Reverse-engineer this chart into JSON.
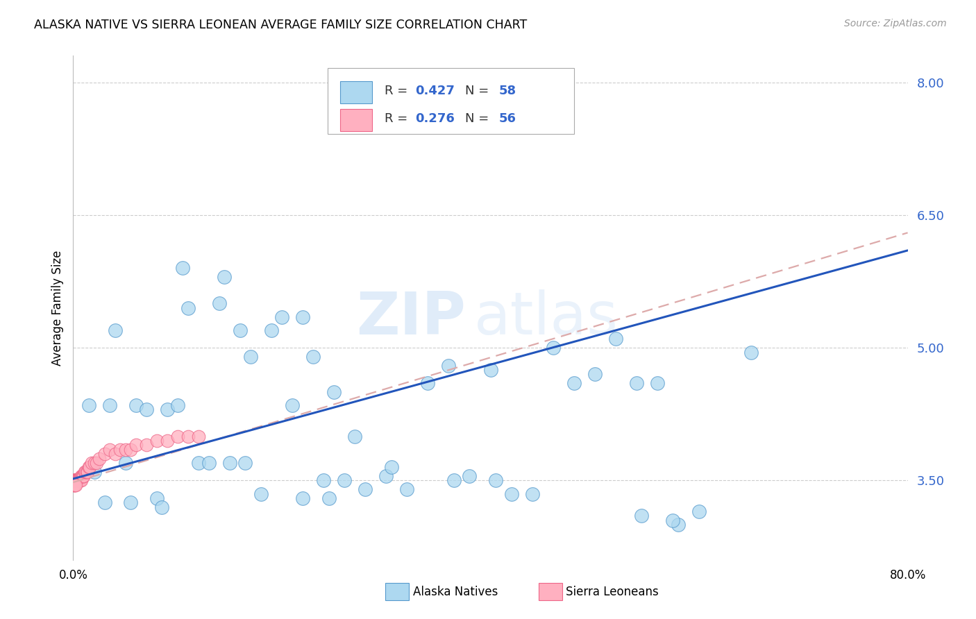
{
  "title": "ALASKA NATIVE VS SIERRA LEONEAN AVERAGE FAMILY SIZE CORRELATION CHART",
  "source": "Source: ZipAtlas.com",
  "ylabel": "Average Family Size",
  "yticks": [
    3.5,
    5.0,
    6.5,
    8.0
  ],
  "xmin": 0.0,
  "xmax": 80.0,
  "ymin": 2.6,
  "ymax": 8.3,
  "watermark_zip": "ZIP",
  "watermark_atlas": "atlas",
  "legend_r1": "R = 0.427",
  "legend_n1": "N = 58",
  "legend_r2": "R = 0.276",
  "legend_n2": "N = 56",
  "alaska_color": "#add8f0",
  "alaska_edge": "#5599cc",
  "sierra_color": "#ffb0c0",
  "sierra_edge": "#ee6688",
  "trendline_alaska_color": "#2255bb",
  "trendline_sierra_color": "#ddaaaa",
  "alaska_x": [
    1.5,
    2.0,
    3.5,
    4.0,
    5.0,
    6.0,
    7.0,
    8.0,
    9.0,
    10.0,
    11.0,
    12.0,
    13.0,
    14.0,
    15.0,
    16.0,
    17.0,
    18.0,
    19.0,
    20.0,
    21.0,
    22.0,
    23.0,
    24.0,
    25.0,
    26.0,
    27.0,
    28.0,
    30.0,
    32.0,
    34.0,
    36.0,
    38.0,
    40.0,
    42.0,
    44.0,
    46.0,
    48.0,
    50.0,
    52.0,
    54.0,
    56.0,
    58.0,
    60.0,
    3.0,
    5.5,
    8.5,
    10.5,
    14.5,
    16.5,
    22.0,
    24.5,
    30.5,
    36.5,
    40.5,
    54.5,
    57.5,
    65.0
  ],
  "alaska_y": [
    4.35,
    3.6,
    4.35,
    5.2,
    3.7,
    4.35,
    4.3,
    3.3,
    4.3,
    4.35,
    5.45,
    3.7,
    3.7,
    5.5,
    3.7,
    5.2,
    4.9,
    3.35,
    5.2,
    5.35,
    4.35,
    5.35,
    4.9,
    3.5,
    4.5,
    3.5,
    4.0,
    3.4,
    3.55,
    3.4,
    4.6,
    4.8,
    3.55,
    4.75,
    3.35,
    3.35,
    5.0,
    4.6,
    4.7,
    5.1,
    4.6,
    4.6,
    3.0,
    3.15,
    3.25,
    3.25,
    3.2,
    5.9,
    5.8,
    3.7,
    3.3,
    3.3,
    3.65,
    3.5,
    3.5,
    3.1,
    3.05,
    4.95
  ],
  "sierra_x": [
    0.05,
    0.08,
    0.1,
    0.12,
    0.15,
    0.18,
    0.2,
    0.22,
    0.25,
    0.28,
    0.3,
    0.35,
    0.38,
    0.4,
    0.42,
    0.45,
    0.48,
    0.5,
    0.55,
    0.6,
    0.65,
    0.7,
    0.75,
    0.8,
    0.85,
    0.9,
    0.95,
    1.0,
    1.1,
    1.2,
    1.3,
    1.4,
    1.5,
    1.6,
    1.8,
    2.0,
    2.2,
    2.5,
    3.0,
    3.5,
    4.0,
    4.5,
    5.0,
    5.5,
    6.0,
    7.0,
    8.0,
    9.0,
    10.0,
    11.0,
    12.0,
    0.06,
    0.09,
    0.13,
    0.17,
    0.23
  ],
  "sierra_y": [
    3.5,
    3.5,
    3.5,
    3.5,
    3.5,
    3.5,
    3.5,
    3.5,
    3.5,
    3.5,
    3.5,
    3.5,
    3.5,
    3.5,
    3.5,
    3.5,
    3.5,
    3.5,
    3.5,
    3.5,
    3.5,
    3.5,
    3.5,
    3.55,
    3.55,
    3.55,
    3.55,
    3.55,
    3.6,
    3.6,
    3.6,
    3.6,
    3.65,
    3.65,
    3.7,
    3.7,
    3.7,
    3.75,
    3.8,
    3.85,
    3.8,
    3.85,
    3.85,
    3.85,
    3.9,
    3.9,
    3.95,
    3.95,
    4.0,
    4.0,
    4.0,
    3.45,
    3.45,
    3.45,
    3.45,
    3.45
  ],
  "alaska_trendline_x0": 0.0,
  "alaska_trendline_x1": 80.0,
  "alaska_trendline_y0": 3.52,
  "alaska_trendline_y1": 6.1,
  "sierra_trendline_x0": 0.0,
  "sierra_trendline_x1": 80.0,
  "sierra_trendline_y0": 3.48,
  "sierra_trendline_y1": 6.3
}
